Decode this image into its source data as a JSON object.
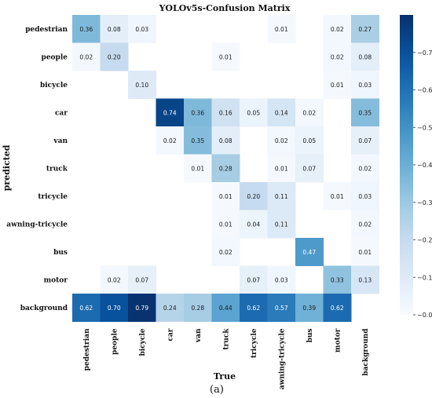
{
  "chart_data": {
    "type": "heatmap",
    "title": "YOLOv5s-Confusion Matrix",
    "xlabel": "True",
    "ylabel": "predicted",
    "caption": "(a)",
    "x_categories": [
      "pedestrian",
      "people",
      "bicycle",
      "car",
      "van",
      "truck",
      "tricycle",
      "awning-tricycle",
      "bus",
      "motor",
      "background"
    ],
    "y_categories": [
      "pedestrian",
      "people",
      "bicycle",
      "car",
      "van",
      "truck",
      "tricycle",
      "awning-tricycle",
      "bus",
      "motor",
      "background"
    ],
    "values": [
      [
        0.36,
        0.08,
        0.03,
        null,
        null,
        null,
        null,
        0.01,
        null,
        0.02,
        0.27
      ],
      [
        0.02,
        0.2,
        null,
        null,
        null,
        0.01,
        null,
        null,
        null,
        0.02,
        0.08
      ],
      [
        null,
        null,
        0.1,
        null,
        null,
        null,
        null,
        null,
        null,
        0.01,
        0.03
      ],
      [
        null,
        null,
        null,
        0.74,
        0.36,
        0.16,
        0.05,
        0.14,
        0.02,
        null,
        0.35
      ],
      [
        null,
        null,
        null,
        0.02,
        0.35,
        0.08,
        null,
        0.02,
        0.05,
        null,
        0.07
      ],
      [
        null,
        null,
        null,
        null,
        0.01,
        0.28,
        null,
        0.01,
        0.07,
        null,
        0.02
      ],
      [
        null,
        null,
        null,
        null,
        null,
        0.01,
        0.2,
        0.11,
        null,
        0.01,
        0.03
      ],
      [
        null,
        null,
        null,
        null,
        null,
        0.01,
        0.04,
        0.11,
        null,
        null,
        0.02
      ],
      [
        null,
        null,
        null,
        null,
        null,
        0.02,
        null,
        null,
        0.47,
        null,
        0.01
      ],
      [
        null,
        0.02,
        0.07,
        null,
        null,
        null,
        0.07,
        0.03,
        null,
        0.33,
        0.13
      ],
      [
        0.62,
        0.7,
        0.79,
        0.24,
        0.28,
        0.44,
        0.62,
        0.57,
        0.39,
        0.62,
        null
      ]
    ],
    "colorbar": {
      "range": [
        0,
        0.8
      ],
      "ticks": [
        0.0,
        0.1,
        0.2,
        0.3,
        0.4,
        0.5,
        0.6,
        0.7
      ],
      "tick_labels": [
        "0.0",
        "0.1",
        "0.2",
        "0.3",
        "0.4",
        "0.5",
        "0.6",
        "0.7"
      ],
      "colormap": "Blues"
    },
    "grid": false
  }
}
